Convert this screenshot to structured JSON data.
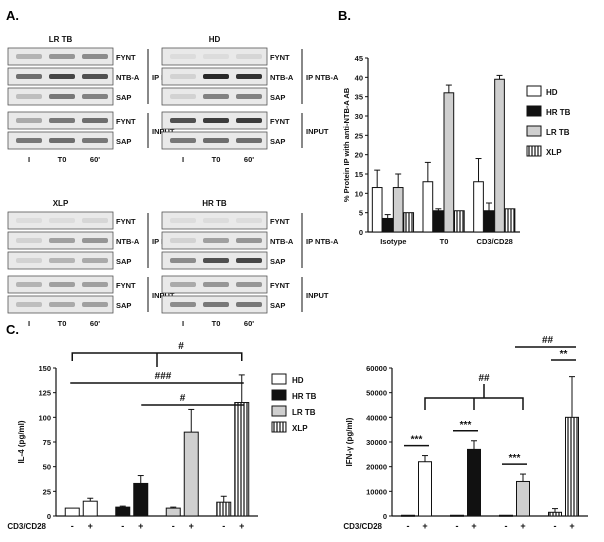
{
  "panels": {
    "a": "A.",
    "b": "B.",
    "c": "C."
  },
  "blots": [
    {
      "title": "LR TB",
      "bands": [
        "FYNT",
        "NTB-A",
        "SAP",
        "FYNT",
        "SAP"
      ],
      "ip_label": "IP NTB-A",
      "input_label": "INPUT",
      "lanes": [
        "I",
        "T0",
        "60'"
      ]
    },
    {
      "title": "HD",
      "bands": [
        "FYNT",
        "NTB-A",
        "SAP",
        "FYNT",
        "SAP"
      ],
      "ip_label": "IP NTB-A",
      "input_label": "INPUT",
      "lanes": [
        "I",
        "T0",
        "60'"
      ]
    },
    {
      "title": "XLP",
      "bands": [
        "FYNT",
        "NTB-A",
        "SAP",
        "FYNT",
        "SAP"
      ],
      "ip_label": "IP NTB-A",
      "input_label": "INPUT",
      "lanes": [
        "I",
        "T0",
        "60'"
      ]
    },
    {
      "title": "HR TB",
      "bands": [
        "FYNT",
        "NTB-A",
        "SAP",
        "FYNT",
        "SAP"
      ],
      "ip_label": "IP NTB-A",
      "input_label": "INPUT",
      "lanes": [
        "I",
        "T0",
        "60'"
      ]
    }
  ],
  "colors": {
    "HD": "#ffffff",
    "HR TB": "#111111",
    "LR TB": "#cfcfcf",
    "XLP": "hatch",
    "stroke": "#111111"
  },
  "chart_data": [
    {
      "id": "B",
      "type": "bar",
      "title": "",
      "xlabel": "",
      "ylabel": "% Protein IP with anti-NTB-A AB",
      "ylim": [
        0,
        45
      ],
      "yticks": [
        0,
        5,
        10,
        15,
        20,
        25,
        30,
        35,
        40,
        45
      ],
      "categories": [
        "Isotype",
        "T0",
        "CD3/CD28"
      ],
      "legend": "right",
      "series": [
        {
          "name": "HD",
          "values": [
            11.5,
            13,
            13
          ],
          "errors": [
            4.5,
            5,
            6
          ]
        },
        {
          "name": "HR TB",
          "values": [
            3.5,
            5.5,
            5.5
          ],
          "errors": [
            1,
            0.5,
            2
          ]
        },
        {
          "name": "LR TB",
          "values": [
            11.5,
            36,
            39.5
          ],
          "errors": [
            3.5,
            2,
            1
          ]
        },
        {
          "name": "XLP",
          "values": [
            5,
            5.5,
            6
          ],
          "errors": [
            0,
            0,
            0
          ]
        }
      ]
    },
    {
      "id": "C-left",
      "type": "bar",
      "title": "",
      "xlabel": "CD3/CD28",
      "ylabel": "IL-4 (pg/ml)",
      "ylim": [
        0,
        150
      ],
      "yticks": [
        0,
        25,
        50,
        75,
        100,
        125,
        150
      ],
      "legend": "right",
      "groups": [
        "HD",
        "HR TB",
        "LR TB",
        "XLP"
      ],
      "conditions": [
        "-",
        "+"
      ],
      "values": [
        [
          8,
          15
        ],
        [
          9,
          33
        ],
        [
          8,
          85
        ],
        [
          14,
          115
        ]
      ],
      "errors": [
        [
          0,
          3
        ],
        [
          1,
          8
        ],
        [
          1,
          23
        ],
        [
          6,
          28
        ]
      ],
      "significance": [
        {
          "label": "#",
          "from": "HD",
          "to": "XLP"
        },
        {
          "label": "###",
          "from": "HD",
          "to": "XLP"
        },
        {
          "label": "#",
          "from": "LR TB",
          "to": "XLP"
        }
      ]
    },
    {
      "id": "C-right",
      "type": "bar",
      "title": "",
      "xlabel": "CD3/CD28",
      "ylabel": "IFN-γ (pg/ml)",
      "ylim": [
        0,
        60000
      ],
      "yticks": [
        0,
        10000,
        20000,
        30000,
        40000,
        50000,
        60000
      ],
      "groups": [
        "HD",
        "HR TB",
        "LR TB",
        "XLP"
      ],
      "conditions": [
        "-",
        "+"
      ],
      "values": [
        [
          300,
          22000
        ],
        [
          300,
          27000
        ],
        [
          300,
          14000
        ],
        [
          1500,
          40000
        ]
      ],
      "errors": [
        [
          0,
          2500
        ],
        [
          0,
          3500
        ],
        [
          0,
          3000
        ],
        [
          1500,
          16500
        ]
      ],
      "significance": [
        {
          "label": "***",
          "within": "HD"
        },
        {
          "label": "***",
          "within": "HR TB"
        },
        {
          "label": "***",
          "within": "LR TB"
        },
        {
          "label": "**",
          "within": "XLP"
        },
        {
          "label": "##",
          "from": "HD",
          "to": "LR TB"
        },
        {
          "label": "##",
          "from": "LR TB",
          "to": "XLP"
        }
      ]
    }
  ]
}
